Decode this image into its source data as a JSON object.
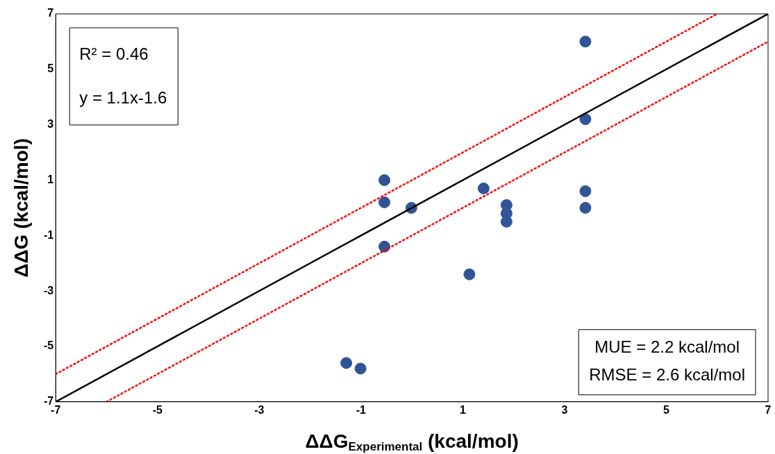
{
  "chart_data": {
    "type": "scatter",
    "xlabel": "ΔΔG$_{Experimental}$ (kcal/mol)",
    "ylabel": "ΔΔG (kcal/mol)",
    "xlim": [
      -7,
      7
    ],
    "ylim": [
      -7,
      7
    ],
    "xticks": [
      -7,
      -5,
      -3,
      -1,
      1,
      3,
      5,
      7
    ],
    "yticks": [
      -7,
      -5,
      -3,
      -1,
      1,
      3,
      5,
      7
    ],
    "grid": false,
    "legend": false,
    "marker": "circle",
    "series": [
      {
        "color": "#2f5597",
        "x": [
          3.41,
          3.41,
          3.41,
          3.41,
          -0.54,
          -0.54,
          -0.54,
          -0.01,
          1.41,
          1.86,
          1.86,
          1.86,
          1.13,
          -1.29,
          -1.01
        ],
        "values": [
          6.0,
          3.2,
          0.6,
          0.0,
          1.0,
          0.2,
          -1.4,
          0.0,
          0.7,
          0.1,
          -0.2,
          -0.5,
          -2.4,
          -5.6,
          -5.8
        ]
      },
      {
        "type": "line",
        "color": "#000000",
        "line_style": "solid",
        "marker": "none",
        "x": [
          -7,
          7
        ],
        "values": [
          -7,
          7
        ]
      },
      {
        "type": "line",
        "color": "#ff0000",
        "line_style": "dotted",
        "marker": "none",
        "x": [
          -7,
          6
        ],
        "values": [
          -6,
          7
        ]
      },
      {
        "type": "line",
        "color": "#ff0000",
        "line_style": "dotted",
        "marker": "none",
        "x": [
          -6,
          7
        ],
        "values": [
          -7,
          6
        ]
      }
    ],
    "annotations": [
      "R² = 0.46",
      "y = 1.1x-1.6",
      "MUE = 2.2 kcal/mol",
      "RMSE = 2.6 kcal/mol"
    ]
  }
}
